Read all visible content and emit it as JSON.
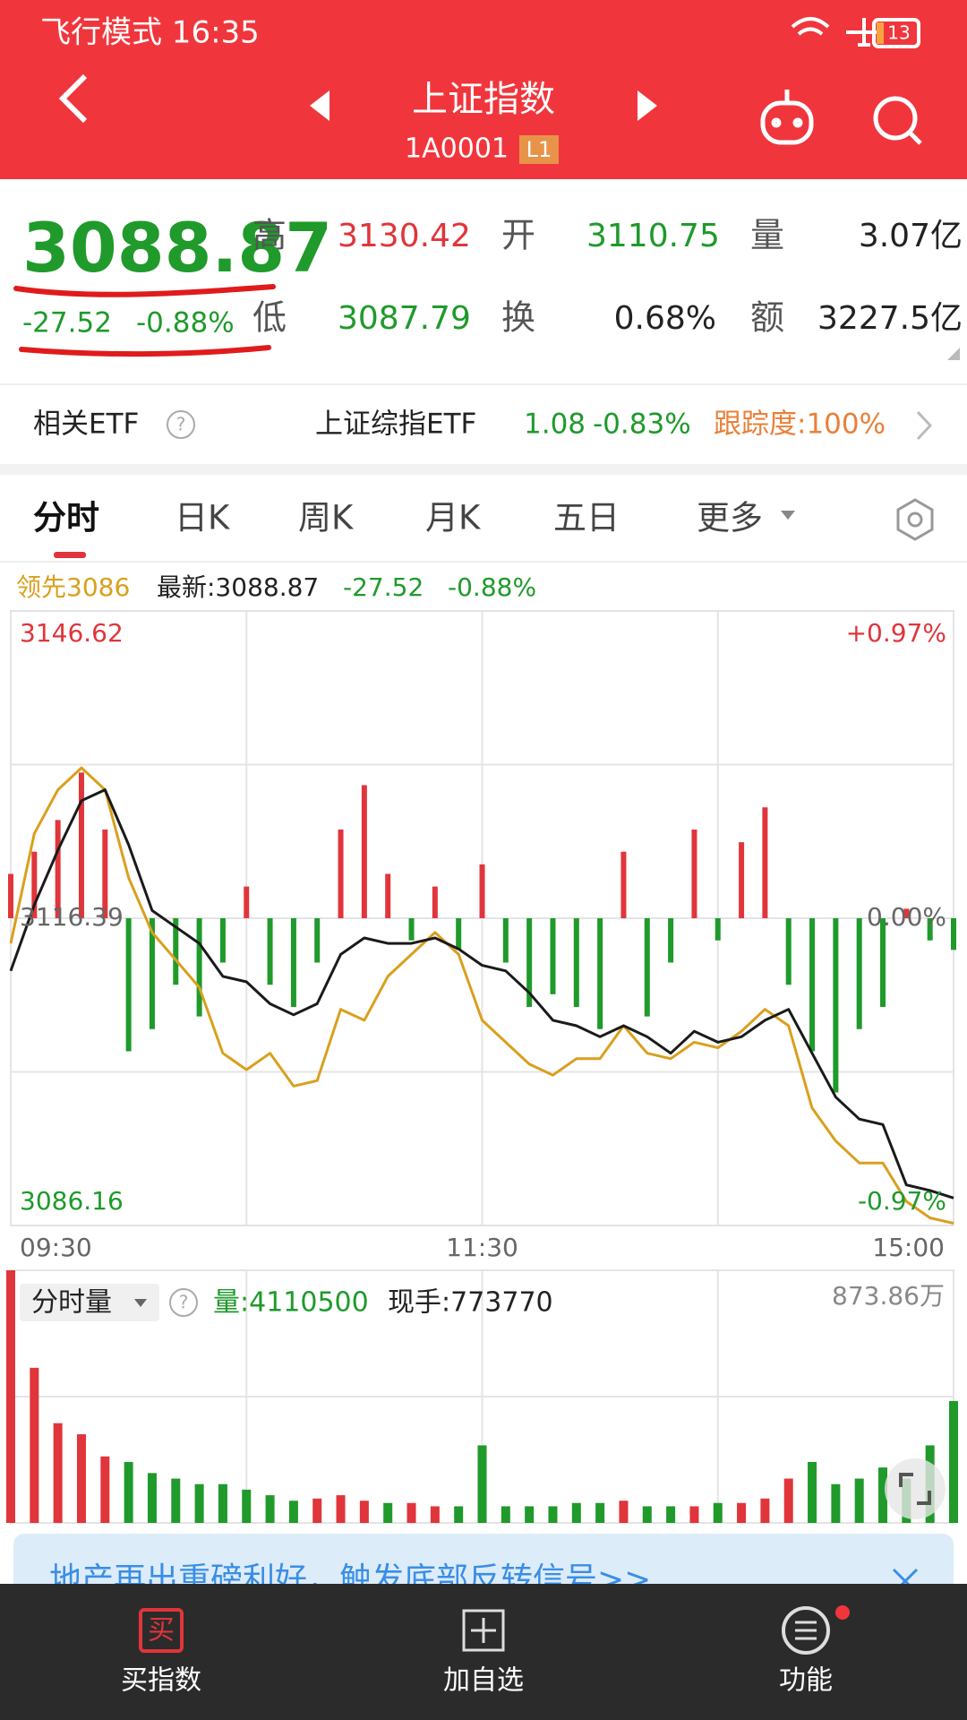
{
  "status_bar": {
    "text": "飞行模式 16:35",
    "battery": "13"
  },
  "header": {
    "title": "上证指数",
    "code": "1A0001",
    "badge": "L1"
  },
  "quote": {
    "price": "3088.87",
    "change": "-27.52",
    "change_pct": "-0.88%",
    "fields": [
      {
        "label": "高",
        "value": "3130.42",
        "tone": "up"
      },
      {
        "label": "开",
        "value": "3110.75",
        "tone": "down"
      },
      {
        "label": "量",
        "value": "3.07亿",
        "tone": "flat"
      },
      {
        "label": "低",
        "value": "3087.79",
        "tone": "down"
      },
      {
        "label": "换",
        "value": "0.68%",
        "tone": "flat"
      },
      {
        "label": "额",
        "value": "3227.5亿",
        "tone": "flat"
      }
    ]
  },
  "help_icon": "?",
  "etf": {
    "label": "相关ETF",
    "name": "上证综指ETF",
    "price": "1.08",
    "change_pct": "-0.83%",
    "tracking": "跟踪度:100%"
  },
  "tabs": [
    "分时",
    "日K",
    "周K",
    "月K",
    "五日",
    "更多"
  ],
  "chart_data": [
    {
      "type": "line",
      "grid": true,
      "x": [
        0,
        6,
        12,
        18,
        24,
        30,
        36,
        42,
        48,
        54,
        60,
        66,
        72,
        78,
        84,
        90,
        96,
        102,
        108,
        114,
        120,
        126,
        132,
        138,
        144,
        150,
        156,
        162,
        168,
        174,
        180,
        186,
        192,
        198,
        204,
        210,
        216,
        222,
        228,
        234,
        240
      ],
      "xlim": [
        0,
        240
      ],
      "xticks": [
        {
          "value": 0,
          "label": "09:30"
        },
        {
          "value": 120,
          "label": "11:30"
        },
        {
          "value": 240,
          "label": "15:00"
        }
      ],
      "ylim": [
        3086.16,
        3146.62
      ],
      "yticks": [
        3146.62,
        3116.39,
        3086.16
      ],
      "y2lim": [
        -0.97,
        0.97
      ],
      "y2ticks": [
        {
          "value": 0.97,
          "label": "+0.97%"
        },
        {
          "value": 0,
          "label": "0.00%"
        },
        {
          "value": -0.97,
          "label": "-0.97%"
        }
      ],
      "legend_change": "-27.52",
      "legend_change_pct": "-0.88%",
      "up_color": "#e0353b",
      "down_color": "#1f9a2b",
      "series": [
        {
          "name": "领先3086",
          "color": "#d9a01e",
          "values": [
            3113.91,
            3124.71,
            3129.03,
            3131.19,
            3129.03,
            3120.39,
            3114.99,
            3112.29,
            3109.59,
            3103.11,
            3101.49,
            3103.11,
            3099.87,
            3100.41,
            3107.43,
            3106.35,
            3110.67,
            3112.83,
            3114.99,
            3112.83,
            3106.35,
            3104.19,
            3102.03,
            3100.95,
            3102.57,
            3102.57,
            3105.81,
            3103.11,
            3102.57,
            3104.19,
            3103.65,
            3105.27,
            3107.43,
            3105.81,
            3097.71,
            3094.47,
            3092.31,
            3092.31,
            3088.53,
            3086.91,
            3086.37
          ]
        },
        {
          "name": "最新:3088.87",
          "color": "#1a1a1a",
          "values": [
            3111.21,
            3117.69,
            3123.09,
            3127.95,
            3129.03,
            3123.63,
            3117.15,
            3115.53,
            3113.91,
            3110.67,
            3110.13,
            3107.97,
            3106.89,
            3107.97,
            3112.83,
            3114.45,
            3113.91,
            3113.91,
            3114.45,
            3113.37,
            3111.75,
            3111.21,
            3109.05,
            3106.35,
            3105.81,
            3104.73,
            3105.81,
            3104.73,
            3103.11,
            3105.27,
            3104.19,
            3104.73,
            3106.35,
            3107.43,
            3103.11,
            3098.79,
            3096.63,
            3096.09,
            3090.15,
            3089.61,
            3088.87
          ]
        },
        {
          "type": "bar",
          "axis": "y2",
          "values": [
            0.14,
            0.21,
            0.31,
            0.46,
            0.28,
            -0.42,
            -0.35,
            -0.21,
            -0.31,
            -0.14,
            0.1,
            -0.21,
            -0.28,
            -0.14,
            0.28,
            0.42,
            0.14,
            -0.07,
            0.1,
            -0.1,
            0.17,
            -0.14,
            -0.28,
            -0.24,
            -0.28,
            -0.35,
            0.21,
            -0.31,
            -0.14,
            0.28,
            -0.07,
            0.24,
            0.35,
            -0.21,
            -0.42,
            -0.55,
            -0.35,
            -0.28,
            0.03,
            -0.07,
            -0.1
          ]
        }
      ]
    },
    {
      "type": "bar",
      "title": "分时量",
      "volume_label": "量:4110500",
      "current_label": "现手:773770",
      "x": [
        0,
        6,
        12,
        18,
        24,
        30,
        36,
        42,
        48,
        54,
        60,
        66,
        72,
        78,
        84,
        90,
        96,
        102,
        108,
        114,
        120,
        126,
        132,
        138,
        144,
        150,
        156,
        162,
        168,
        174,
        180,
        186,
        192,
        198,
        204,
        210,
        216,
        222,
        228,
        234,
        240
      ],
      "xlim": [
        0,
        240
      ],
      "ylim": [
        0,
        873.86
      ],
      "yticks": [
        {
          "value": 873.86,
          "label": "873.86万"
        }
      ],
      "up_color": "#e0353b",
      "down_color": "#1f9a2b",
      "values": [
        873.86,
        536.6,
        345.0,
        306.6,
        230.0,
        210.8,
        172.5,
        153.3,
        134.2,
        134.2,
        115.0,
        95.8,
        76.7,
        84.3,
        95.8,
        76.7,
        69.0,
        69.0,
        57.5,
        57.5,
        268.3,
        57.5,
        57.5,
        57.5,
        69.0,
        69.0,
        76.7,
        57.5,
        57.5,
        57.5,
        69.0,
        69.0,
        84.3,
        153.3,
        210.8,
        134.2,
        153.3,
        191.7,
        153.3,
        268.3,
        421.6
      ]
    }
  ],
  "banner": "地产再出重磅利好，触发底部反转信号>>",
  "bottom_nav": [
    {
      "icon": "买",
      "label": "买指数"
    },
    {
      "label": "加自选"
    },
    {
      "label": "功能"
    }
  ]
}
